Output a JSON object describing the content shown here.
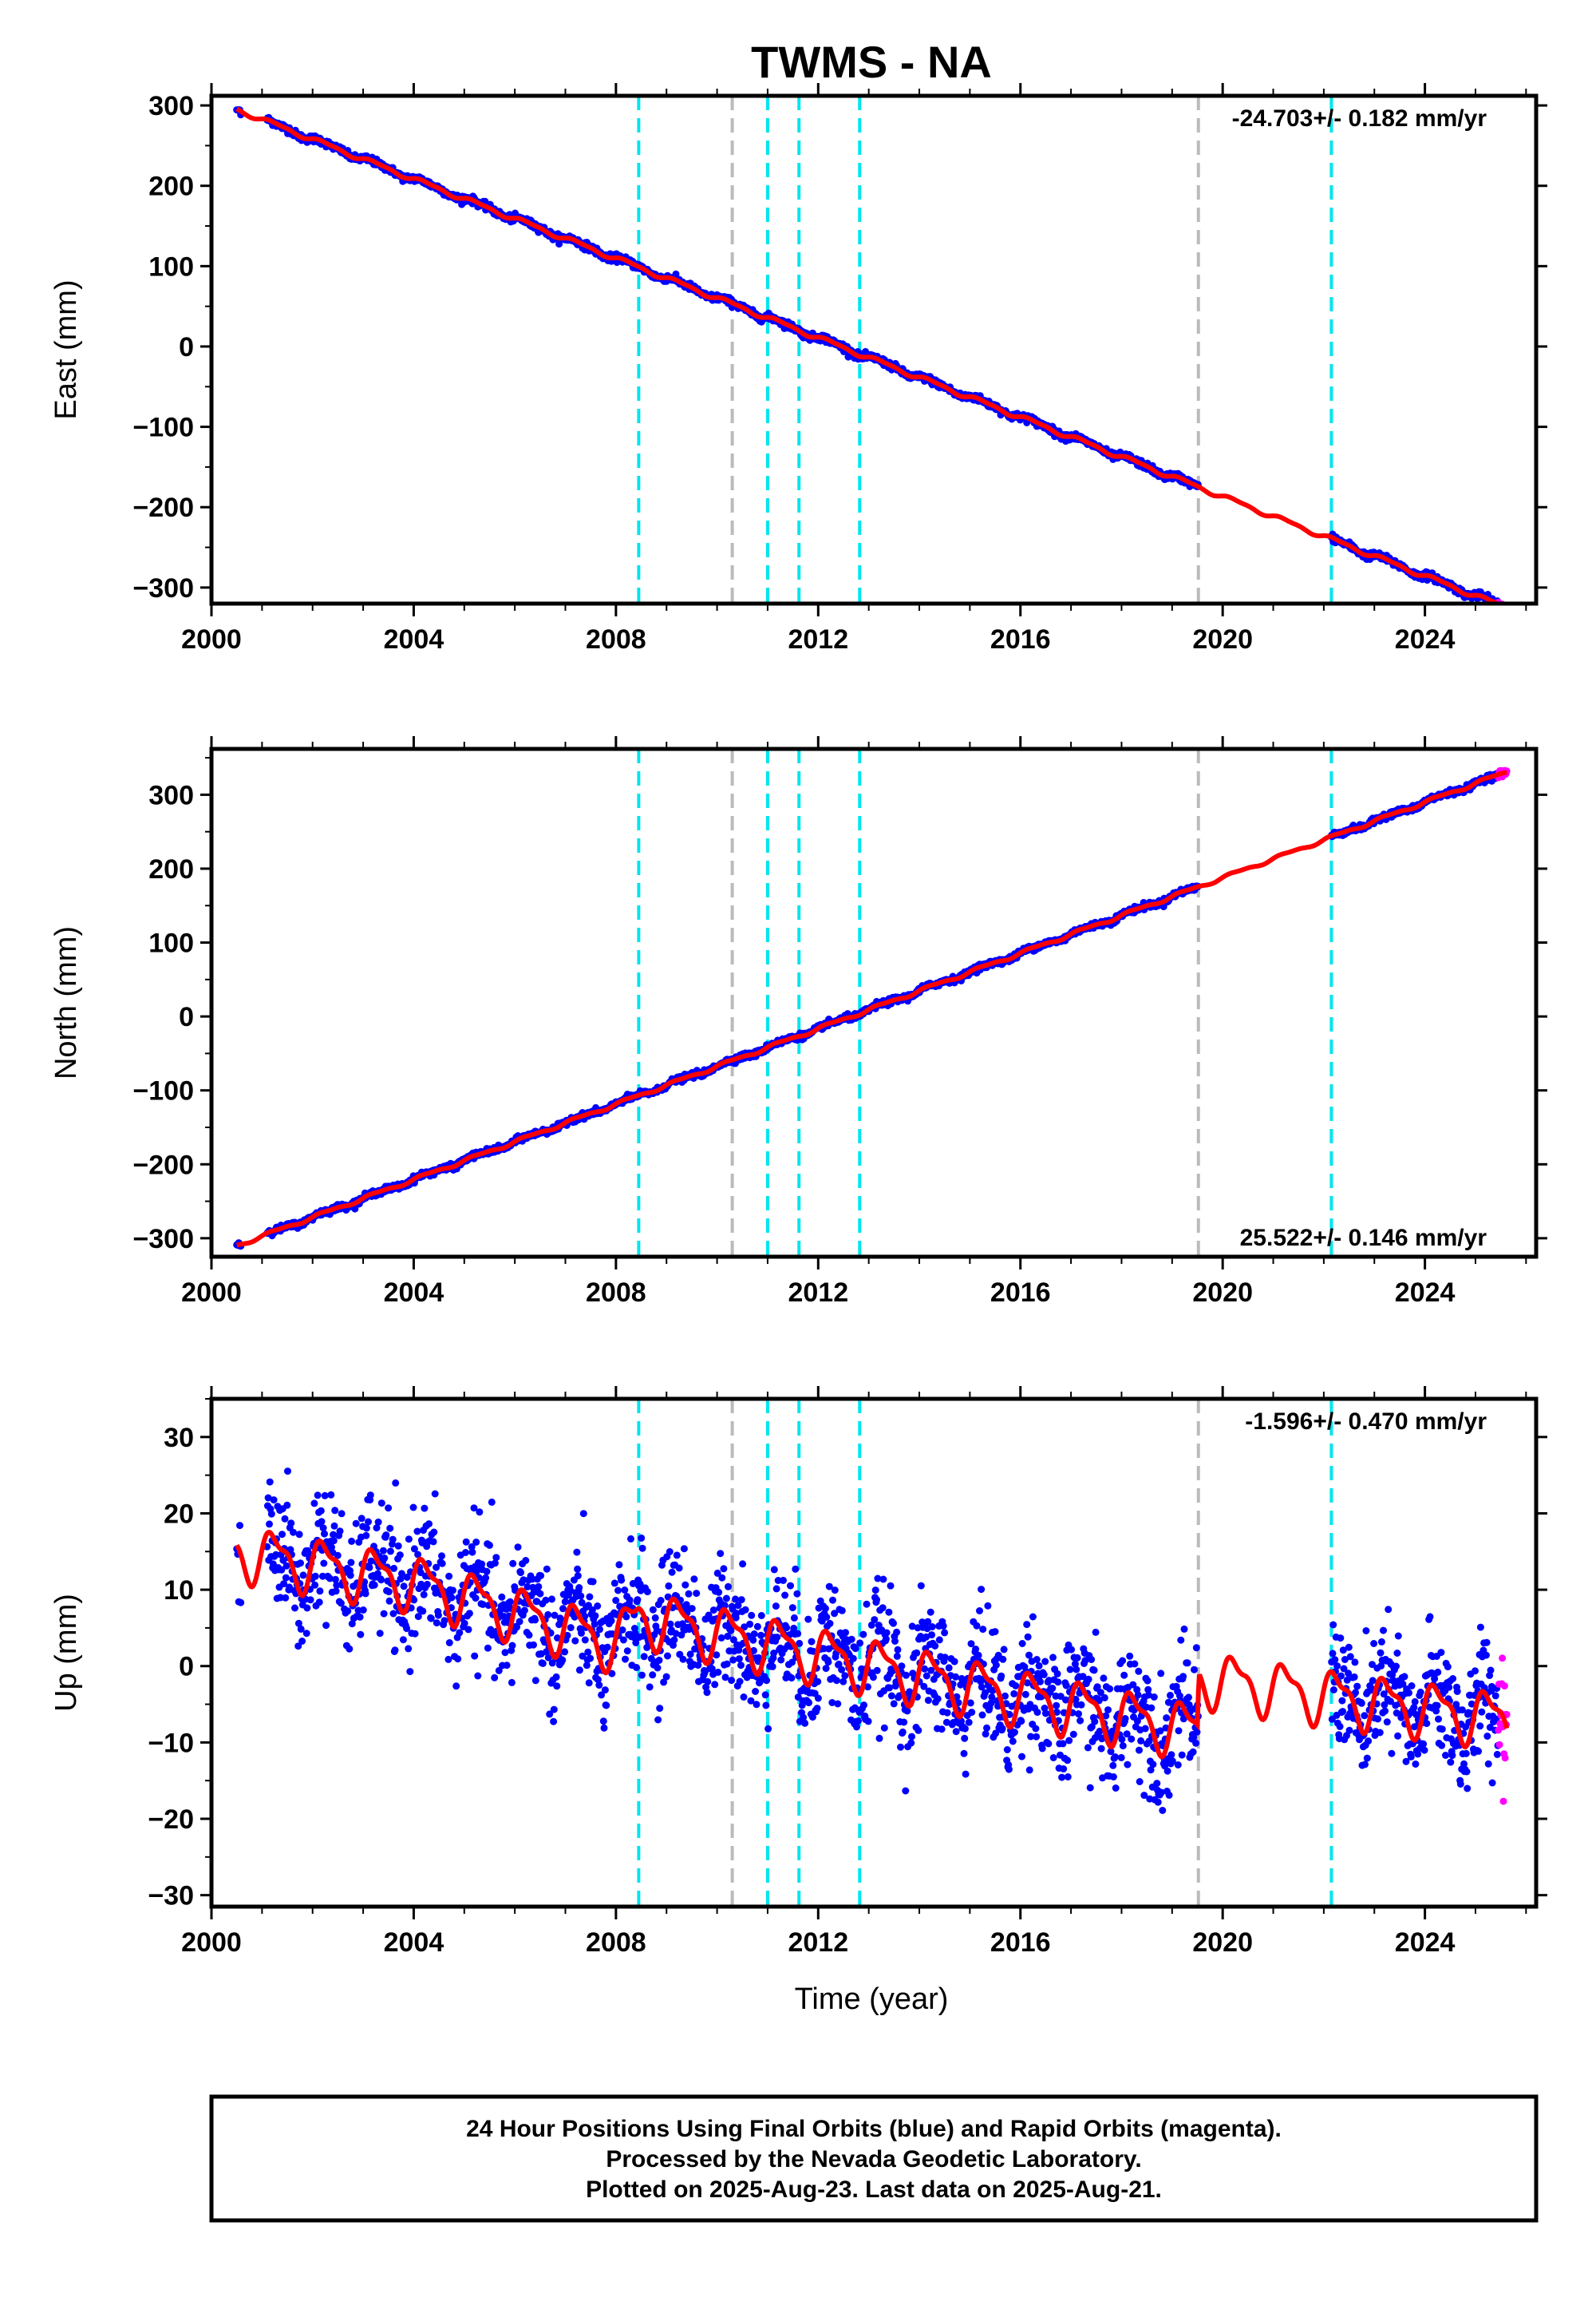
{
  "chart_data": {
    "type": "scatter",
    "title": "TWMS - NA",
    "xlabel": "Time (year)",
    "xlim": [
      2000.0,
      2026.2
    ],
    "xticks": [
      2000,
      2004,
      2008,
      2012,
      2016,
      2020,
      2024
    ],
    "series_colors": {
      "final_orbits": "#0000ff",
      "rapid_orbits": "#ff00ff",
      "model": "#ff0000",
      "equipment_change": "#00e5ee",
      "other_event": "#bbbbbb"
    },
    "event_lines": {
      "cyan": [
        2008.45,
        2011.0,
        2011.62,
        2012.82,
        2022.15
      ],
      "gray": [
        2010.3,
        2019.52
      ]
    },
    "data_start": 2000.5,
    "gap": [
      2019.52,
      2022.15
    ],
    "rapid_start": 2025.45,
    "panels": [
      {
        "id": "east",
        "ylabel": "East (mm)",
        "ylim": [
          -320,
          312
        ],
        "yticks": [
          300,
          200,
          100,
          0,
          -100,
          -200,
          -300
        ],
        "ytick_labels": [
          "300",
          "200",
          "100",
          "0",
          "−100",
          "−200",
          "−300"
        ],
        "rate_label": "-24.703+/- 0.182 mm/yr",
        "rate_position": "top-right",
        "rate": -24.703,
        "intercept": 295,
        "seasonal_amp": 2.5,
        "scatter": 2.2,
        "step_offsets": [
          [
            2008.45,
            0
          ],
          [
            2022.15,
            0
          ]
        ]
      },
      {
        "id": "north",
        "ylabel": "North (mm)",
        "ylim": [
          -325,
          362
        ],
        "yticks": [
          300,
          200,
          100,
          0,
          -100,
          -200,
          -300
        ],
        "ytick_labels": [
          "300",
          "200",
          "100",
          "0",
          "−100",
          "−200",
          "−300"
        ],
        "rate_label": "25.522+/- 0.146 mm/yr",
        "rate_position": "bottom-right",
        "rate": 25.522,
        "intercept": -310,
        "seasonal_amp": 2.0,
        "scatter": 2.0,
        "step_offsets": [
          [
            2008.45,
            0
          ],
          [
            2022.15,
            0
          ]
        ]
      },
      {
        "id": "up",
        "ylabel": "Up (mm)",
        "ylim": [
          -31.5,
          35
        ],
        "yticks": [
          30,
          20,
          10,
          0,
          -10,
          -20,
          -30
        ],
        "ytick_labels": [
          "30",
          "20",
          "10",
          "0",
          "−10",
          "−20",
          "−30"
        ],
        "rate_label": "-1.596+/- 0.470 mm/yr",
        "rate_position": "top-right",
        "rate": -1.596,
        "intercept": 14,
        "seasonal_amp": 3.2,
        "scatter": 4.0,
        "step_offsets": [
          [
            2008.45,
            0
          ],
          [
            2022.15,
            0
          ]
        ],
        "model_knots": [
          [
            2000.5,
            15
          ],
          [
            2004.0,
            11
          ],
          [
            2008.0,
            3
          ],
          [
            2008.45,
            6.5
          ],
          [
            2012.0,
            1.5
          ],
          [
            2016.0,
            -4
          ],
          [
            2019.5,
            -8.5
          ],
          [
            2019.53,
            -1.5
          ],
          [
            2022.1,
            -4
          ],
          [
            2022.16,
            -4
          ],
          [
            2025.6,
            -7
          ]
        ]
      }
    ]
  },
  "footer": {
    "line1": "24 Hour Positions Using Final Orbits (blue) and Rapid Orbits (magenta).",
    "line2": "Processed by the Nevada Geodetic Laboratory.",
    "line3": "Plotted on 2025-Aug-23. Last data on 2025-Aug-21."
  }
}
